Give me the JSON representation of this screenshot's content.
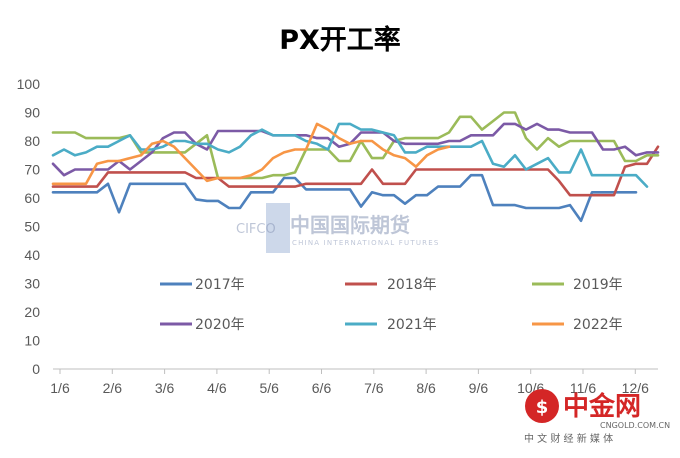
{
  "chart_data": {
    "type": "line",
    "title": "PX开工率",
    "xlabel": "",
    "ylabel": "",
    "ylim": [
      0,
      100
    ],
    "yticks": [
      0,
      10,
      20,
      30,
      40,
      50,
      60,
      70,
      80,
      90,
      100
    ],
    "xticks": [
      "1/6",
      "2/6",
      "3/6",
      "4/6",
      "5/6",
      "6/6",
      "7/6",
      "8/6",
      "9/6",
      "10/6",
      "11/6",
      "12/6"
    ],
    "grid": false,
    "legend_position": "bottom-center",
    "series": [
      {
        "name": "2017年",
        "color": "#4E81BD",
        "values": [
          62,
          62,
          62,
          62,
          62,
          65,
          55,
          65,
          65,
          65,
          65,
          65,
          65,
          59.5,
          59,
          59,
          56.5,
          56.5,
          62,
          62,
          62,
          67,
          67,
          63,
          63,
          63,
          63,
          63,
          57,
          62,
          61,
          61,
          58,
          61,
          61,
          64,
          64,
          64,
          68,
          68,
          57.5,
          57.5,
          57.5,
          56.5,
          56.5,
          56.5,
          56.5,
          57.5,
          52,
          62,
          62,
          62,
          62,
          62
        ]
      },
      {
        "name": "2018年",
        "color": "#C0504D",
        "values": [
          64,
          64,
          64,
          64,
          64,
          69,
          69,
          69,
          69,
          69,
          69,
          69,
          69,
          67,
          67,
          67,
          64,
          64,
          64,
          64,
          64,
          64,
          64,
          65,
          65,
          65,
          65,
          65,
          65,
          70,
          65,
          65,
          65,
          70,
          70,
          70,
          70,
          70,
          70,
          70,
          70,
          70,
          70,
          70,
          70,
          70,
          66,
          61,
          61,
          61,
          61,
          61,
          71,
          72,
          72,
          78
        ]
      },
      {
        "name": "2019年",
        "color": "#9BBB59",
        "values": [
          83,
          83,
          83,
          81,
          81,
          81,
          81,
          82,
          76,
          76,
          76,
          76,
          76,
          79,
          82,
          67,
          67,
          67,
          67,
          67,
          68,
          68,
          69,
          77,
          77,
          77,
          73,
          73,
          80,
          74,
          74,
          80,
          81,
          81,
          81,
          81,
          83,
          88.5,
          88.5,
          84,
          87,
          90,
          90,
          81,
          77,
          81,
          78,
          80,
          80,
          80,
          80,
          80,
          73,
          73,
          75,
          75
        ]
      },
      {
        "name": "2020年",
        "color": "#7C5AA6",
        "values": [
          72,
          68,
          70,
          70,
          70,
          70,
          73,
          70,
          73,
          76,
          81,
          83,
          83,
          79,
          77,
          83.5,
          83.5,
          83.5,
          83.5,
          83.5,
          82,
          82,
          82,
          82,
          81,
          81,
          78,
          79,
          83,
          83,
          83,
          80,
          79,
          79,
          79,
          79,
          80,
          80,
          82,
          82,
          82,
          86,
          86,
          84,
          86,
          84,
          84,
          83,
          83,
          83,
          77,
          77,
          78,
          75,
          76,
          76
        ]
      },
      {
        "name": "2021年",
        "color": "#4BACC6",
        "values": [
          75,
          77,
          75,
          76,
          78,
          78,
          80,
          82,
          77,
          77,
          78,
          80,
          80,
          79,
          79,
          77,
          76,
          78,
          82,
          84,
          82,
          82,
          82,
          80,
          79,
          77,
          86,
          86,
          84,
          84,
          83,
          82,
          76,
          76,
          78,
          78,
          78,
          78,
          78,
          80,
          72,
          71,
          75,
          70,
          72,
          74,
          69,
          69,
          77,
          68,
          68,
          68,
          68,
          68,
          64
        ]
      },
      {
        "name": "2022年",
        "color": "#F79646",
        "values": [
          65,
          65,
          65,
          65,
          72,
          73,
          73,
          74,
          75,
          79,
          80,
          78,
          74,
          70,
          66,
          67,
          67,
          67,
          68,
          70,
          74,
          76,
          77,
          77,
          86,
          84,
          81,
          79,
          80,
          80,
          77,
          75,
          74,
          71,
          75,
          77,
          78
        ]
      }
    ]
  },
  "watermark": {
    "logo": "CIFCO",
    "name_cn": "中国国际期货",
    "name_en": "CHINA INTERNATIONAL FUTURES"
  },
  "corner_logo": {
    "name_cn": "中金网",
    "url": "CNGOLD.COM.CN",
    "tagline": "中 文 财 经 新 媒 体",
    "color": "#d42626"
  }
}
